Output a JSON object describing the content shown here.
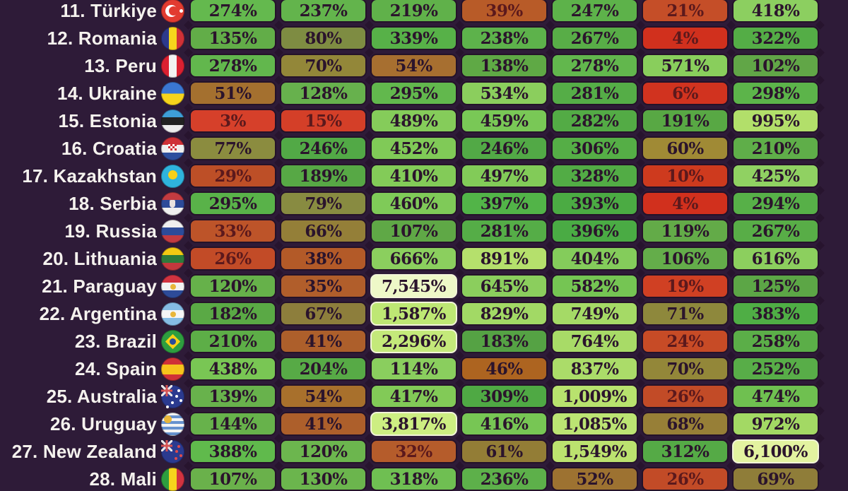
{
  "page": {
    "background": "#2e1b38",
    "label_text_color": "#f5f2ee",
    "cell_text_color": "#2b142c",
    "cell_border_color": "#241229",
    "pale_cell_border_color": "#f2f4d8",
    "diamond_connector_color": "#27142e"
  },
  "chart_data": {
    "type": "heatmap",
    "description_visible": "Ranked country rows (11-28) with 7 columns of percentage values; cell color encodes magnitude (red=low, olive=mid, green=high, pale yellow-green=very high). Column headers are cropped out of view.",
    "column_count": 7,
    "column_labels_visible": false,
    "color_scale_hint": {
      "low": "#d1301d",
      "mid_low": "#ad5f2b",
      "mid": "#8b8c3f",
      "high": "#58ad47",
      "higher": "#8ccf5e",
      "very_high": "#bee774",
      "extreme": "#eef8c8"
    },
    "rows": [
      {
        "rank": "11.",
        "country": "Türkiye",
        "flag_code": "tr",
        "flag_icon": "turkiye-flag-icon",
        "values": [
          "274%",
          "237%",
          "219%",
          "39%",
          "247%",
          "21%",
          "418%"
        ],
        "values_pct": [
          274,
          237,
          219,
          39,
          247,
          21,
          418
        ],
        "colors": [
          "#64b94e",
          "#63b44c",
          "#60b14a",
          "#b85b28",
          "#5db24a",
          "#c54e28",
          "#8ccf60"
        ]
      },
      {
        "rank": "12.",
        "country": "Romania",
        "flag_code": "ro",
        "flag_icon": "romania-flag-icon",
        "values": [
          "135%",
          "80%",
          "339%",
          "238%",
          "267%",
          "4%",
          "322%"
        ],
        "values_pct": [
          135,
          80,
          339,
          238,
          267,
          4,
          322
        ],
        "colors": [
          "#62ad48",
          "#7e8c42",
          "#57b148",
          "#5db24b",
          "#58ad47",
          "#d1301d",
          "#54ad46"
        ]
      },
      {
        "rank": "13.",
        "country": "Peru",
        "flag_code": "pe",
        "flag_icon": "peru-flag-icon",
        "values": [
          "278%",
          "70%",
          "54%",
          "138%",
          "278%",
          "571%",
          "102%"
        ],
        "values_pct": [
          278,
          70,
          54,
          138,
          278,
          571,
          102
        ],
        "colors": [
          "#62b74d",
          "#938739",
          "#a76f30",
          "#5fa945",
          "#62b74d",
          "#89ce5c",
          "#61a647"
        ]
      },
      {
        "rank": "14.",
        "country": "Ukraine",
        "flag_code": "ua",
        "flag_icon": "ukraine-flag-icon",
        "values": [
          "51%",
          "128%",
          "295%",
          "534%",
          "281%",
          "6%",
          "298%"
        ],
        "values_pct": [
          51,
          128,
          295,
          534,
          281,
          6,
          298
        ],
        "colors": [
          "#a4702f",
          "#67b14d",
          "#62b84d",
          "#8bce5d",
          "#55ad47",
          "#d1331f",
          "#5cb44a"
        ]
      },
      {
        "rank": "15.",
        "country": "Estonia",
        "flag_code": "ee",
        "flag_icon": "estonia-flag-icon",
        "values": [
          "3%",
          "15%",
          "489%",
          "459%",
          "282%",
          "191%",
          "995%"
        ],
        "values_pct": [
          3,
          15,
          489,
          459,
          282,
          191,
          995
        ],
        "colors": [
          "#d6402a",
          "#d43f28",
          "#85cc5a",
          "#79c856",
          "#53ab45",
          "#58a844",
          "#b2df6a"
        ]
      },
      {
        "rank": "16.",
        "country": "Croatia",
        "flag_code": "hr",
        "flag_icon": "croatia-flag-icon",
        "values": [
          "77%",
          "246%",
          "452%",
          "246%",
          "306%",
          "60%",
          "210%"
        ],
        "values_pct": [
          77,
          246,
          452,
          246,
          306,
          60,
          210
        ],
        "colors": [
          "#8b8c3f",
          "#52a946",
          "#80ca57",
          "#52a946",
          "#55ae46",
          "#a08a35",
          "#5fae49"
        ]
      },
      {
        "rank": "17.",
        "country": "Kazakhstan",
        "flag_code": "kz",
        "flag_icon": "kazakhstan-flag-icon",
        "values": [
          "29%",
          "189%",
          "410%",
          "497%",
          "328%",
          "10%",
          "425%"
        ],
        "values_pct": [
          29,
          189,
          410,
          497,
          328,
          10,
          425
        ],
        "colors": [
          "#bd4f27",
          "#57a845",
          "#83cb58",
          "#82cb58",
          "#52ac45",
          "#ce3a1e",
          "#90d162"
        ]
      },
      {
        "rank": "18.",
        "country": "Serbia",
        "flag_code": "rs",
        "flag_icon": "serbia-flag-icon",
        "values": [
          "295%",
          "79%",
          "460%",
          "397%",
          "393%",
          "4%",
          "294%"
        ],
        "values_pct": [
          295,
          79,
          460,
          397,
          393,
          4,
          294
        ],
        "colors": [
          "#59b249",
          "#888b41",
          "#7fca58",
          "#52b448",
          "#4bab43",
          "#d1301d",
          "#57b048"
        ]
      },
      {
        "rank": "19.",
        "country": "Russia",
        "flag_code": "ru",
        "flag_icon": "russia-flag-icon",
        "values": [
          "33%",
          "66%",
          "107%",
          "281%",
          "396%",
          "119%",
          "267%"
        ],
        "values_pct": [
          33,
          66,
          107,
          281,
          396,
          119,
          267
        ],
        "colors": [
          "#bd5429",
          "#947f38",
          "#5fa846",
          "#55ad47",
          "#4aab44",
          "#63ab48",
          "#58ad47"
        ]
      },
      {
        "rank": "20.",
        "country": "Lithuania",
        "flag_code": "lt",
        "flag_icon": "lithuania-flag-icon",
        "values": [
          "26%",
          "38%",
          "666%",
          "891%",
          "404%",
          "106%",
          "616%"
        ],
        "values_pct": [
          26,
          38,
          666,
          891,
          404,
          106,
          616
        ],
        "colors": [
          "#c24b27",
          "#b35a28",
          "#8bcf5e",
          "#b5e06c",
          "#84cc5b",
          "#64ad4a",
          "#8ccf5e"
        ]
      },
      {
        "rank": "21.",
        "country": "Paraguay",
        "flag_code": "py",
        "flag_icon": "paraguay-flag-icon",
        "values": [
          "120%",
          "35%",
          "7,545%",
          "645%",
          "582%",
          "19%",
          "125%"
        ],
        "values_pct": [
          120,
          35,
          7545,
          645,
          582,
          19,
          125
        ],
        "colors": [
          "#66b14a",
          "#b15e2b",
          "#eef8c8",
          "#8bce5d",
          "#75c553",
          "#d04023",
          "#5ca646"
        ]
      },
      {
        "rank": "22.",
        "country": "Argentina",
        "flag_code": "ar",
        "flag_icon": "argentina-flag-icon",
        "values": [
          "182%",
          "67%",
          "1,587%",
          "829%",
          "749%",
          "71%",
          "383%"
        ],
        "values_pct": [
          182,
          67,
          1587,
          829,
          749,
          71,
          383
        ],
        "colors": [
          "#5aa945",
          "#8d7e3c",
          "#bee774",
          "#a2d965",
          "#a5da66",
          "#8e883c",
          "#4fae45"
        ]
      },
      {
        "rank": "23.",
        "country": "Brazil",
        "flag_code": "br",
        "flag_icon": "brazil-flag-icon",
        "values": [
          "210%",
          "41%",
          "2,296%",
          "183%",
          "764%",
          "24%",
          "258%"
        ],
        "values_pct": [
          210,
          41,
          2296,
          183,
          764,
          24,
          258
        ],
        "colors": [
          "#5dae47",
          "#ad5f2b",
          "#c4e97a",
          "#55a244",
          "#a8db67",
          "#c74b26",
          "#5bae48"
        ]
      },
      {
        "rank": "24.",
        "country": "Spain",
        "flag_code": "es",
        "flag_icon": "spain-flag-icon",
        "values": [
          "438%",
          "204%",
          "114%",
          "46%",
          "837%",
          "70%",
          "252%"
        ],
        "values_pct": [
          438,
          204,
          114,
          46,
          837,
          70,
          252
        ],
        "colors": [
          "#79c654",
          "#57aa46",
          "#8ace5e",
          "#ad6420",
          "#abdc69",
          "#938739",
          "#58ad48"
        ]
      },
      {
        "rank": "25.",
        "country": "Australia",
        "flag_code": "au",
        "flag_icon": "australia-flag-icon",
        "values": [
          "139%",
          "54%",
          "417%",
          "309%",
          "1,009%",
          "26%",
          "474%"
        ],
        "values_pct": [
          139,
          54,
          417,
          309,
          1009,
          26,
          474
        ],
        "colors": [
          "#68b24c",
          "#a8702c",
          "#82ca57",
          "#4fa944",
          "#b8e26e",
          "#c24b27",
          "#6fc050"
        ]
      },
      {
        "rank": "26.",
        "country": "Uruguay",
        "flag_code": "uy",
        "flag_icon": "uruguay-flag-icon",
        "values": [
          "144%",
          "41%",
          "3,817%",
          "416%",
          "1,085%",
          "68%",
          "972%"
        ],
        "values_pct": [
          144,
          41,
          3817,
          416,
          1085,
          68,
          972
        ],
        "colors": [
          "#67b24b",
          "#ad5f2b",
          "#cdee82",
          "#77c654",
          "#bce473",
          "#977f37",
          "#a3d964"
        ]
      },
      {
        "rank": "27.",
        "country": "New Zealand",
        "flag_code": "nz",
        "flag_icon": "new-zealand-flag-icon",
        "values": [
          "388%",
          "120%",
          "32%",
          "61%",
          "1,549%",
          "312%",
          "6,100%"
        ],
        "values_pct": [
          388,
          120,
          32,
          61,
          1549,
          312,
          6100
        ],
        "colors": [
          "#60ba4c",
          "#6cb64e",
          "#b55c2b",
          "#937d36",
          "#bce26f",
          "#55aa46",
          "#e3f3a0"
        ]
      },
      {
        "rank": "28.",
        "country": "Mali",
        "flag_code": "ml",
        "flag_icon": "mali-flag-icon",
        "values": [
          "107%",
          "130%",
          "318%",
          "236%",
          "52%",
          "26%",
          "69%"
        ],
        "values_pct": [
          107,
          130,
          318,
          236,
          52,
          26,
          69
        ],
        "colors": [
          "#6ab14b",
          "#6bb54d",
          "#6fbf52",
          "#5db04a",
          "#9d7231",
          "#c24b27",
          "#8f7d39"
        ]
      }
    ]
  }
}
